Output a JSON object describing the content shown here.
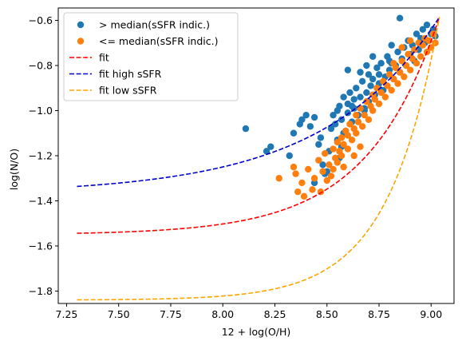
{
  "chart_data": {
    "type": "scatter",
    "title": "",
    "xlabel": "12 + log(O/H)",
    "ylabel": "log(N/O)",
    "xlim": [
      7.21,
      9.11
    ],
    "ylim": [
      -1.855,
      -0.545
    ],
    "xticks": [
      7.25,
      7.5,
      7.75,
      8.0,
      8.25,
      8.5,
      8.75,
      9.0
    ],
    "xtick_labels": [
      "7.25",
      "7.50",
      "7.75",
      "8.00",
      "8.25",
      "8.50",
      "8.75",
      "9.00"
    ],
    "yticks": [
      -1.8,
      -1.6,
      -1.4,
      -1.2,
      -1.0,
      -0.8,
      -0.6
    ],
    "ytick_labels": [
      "−1.8",
      "−1.6",
      "−1.4",
      "−1.2",
      "−1.0",
      "−0.8",
      "−0.6"
    ],
    "legend_position": "upper-left",
    "series": [
      {
        "name": "> median(sSFR indic.)",
        "kind": "scatter",
        "color": "#1f77b4",
        "points": [
          [
            8.11,
            -1.08
          ],
          [
            8.21,
            -1.18
          ],
          [
            8.23,
            -1.16
          ],
          [
            8.32,
            -1.2
          ],
          [
            8.34,
            -1.1
          ],
          [
            8.37,
            -1.06
          ],
          [
            8.38,
            -1.04
          ],
          [
            8.4,
            -1.02
          ],
          [
            8.42,
            -1.07
          ],
          [
            8.44,
            -1.03
          ],
          [
            8.46,
            -1.15
          ],
          [
            8.47,
            -1.12
          ],
          [
            8.48,
            -1.24
          ],
          [
            8.49,
            -1.28
          ],
          [
            8.51,
            -1.18
          ],
          [
            8.52,
            -1.08
          ],
          [
            8.53,
            -1.02
          ],
          [
            8.54,
            -1.06
          ],
          [
            8.55,
            -1.13
          ],
          [
            8.55,
            -1.0
          ],
          [
            8.56,
            -0.98
          ],
          [
            8.57,
            -1.16
          ],
          [
            8.57,
            -1.04
          ],
          [
            8.58,
            -0.94
          ],
          [
            8.59,
            -1.09
          ],
          [
            8.6,
            -1.01
          ],
          [
            8.6,
            -0.97
          ],
          [
            8.61,
            -0.92
          ],
          [
            8.62,
            -1.05
          ],
          [
            8.63,
            -0.99
          ],
          [
            8.63,
            -0.95
          ],
          [
            8.64,
            -0.9
          ],
          [
            8.65,
            -1.02
          ],
          [
            8.66,
            -0.94
          ],
          [
            8.67,
            -0.87
          ],
          [
            8.68,
            -0.99
          ],
          [
            8.69,
            -0.92
          ],
          [
            8.7,
            -0.84
          ],
          [
            8.7,
            -0.96
          ],
          [
            8.71,
            -0.89
          ],
          [
            8.72,
            -0.86
          ],
          [
            8.73,
            -0.93
          ],
          [
            8.74,
            -0.81
          ],
          [
            8.75,
            -0.88
          ],
          [
            8.75,
            -0.84
          ],
          [
            8.76,
            -0.79
          ],
          [
            8.77,
            -0.91
          ],
          [
            8.78,
            -0.85
          ],
          [
            8.79,
            -0.76
          ],
          [
            8.8,
            -0.82
          ],
          [
            8.8,
            -0.78
          ],
          [
            8.81,
            -0.71
          ],
          [
            8.82,
            -0.86
          ],
          [
            8.83,
            -0.8
          ],
          [
            8.84,
            -0.74
          ],
          [
            8.85,
            -0.83
          ],
          [
            8.86,
            -0.77
          ],
          [
            8.87,
            -0.72
          ],
          [
            8.88,
            -0.8
          ],
          [
            8.89,
            -0.69
          ],
          [
            8.9,
            -0.75
          ],
          [
            8.91,
            -0.71
          ],
          [
            8.92,
            -0.78
          ],
          [
            8.93,
            -0.66
          ],
          [
            8.94,
            -0.73
          ],
          [
            8.95,
            -0.68
          ],
          [
            8.96,
            -0.64
          ],
          [
            8.97,
            -0.7
          ],
          [
            8.98,
            -0.62
          ],
          [
            9.0,
            -0.66
          ],
          [
            9.01,
            -0.64
          ],
          [
            9.02,
            -0.67
          ],
          [
            8.72,
            -0.76
          ],
          [
            8.66,
            -0.83
          ],
          [
            8.6,
            -0.82
          ],
          [
            8.69,
            -0.8
          ],
          [
            8.85,
            -0.59
          ],
          [
            8.81,
            -0.79
          ],
          [
            8.58,
            -1.1
          ],
          [
            8.62,
            -0.98
          ],
          [
            8.44,
            -1.32
          ],
          [
            8.5,
            -1.27
          ],
          [
            8.56,
            -1.21
          ],
          [
            8.68,
            -1.0
          ]
        ]
      },
      {
        "name": "<= median(sSFR indic.)",
        "kind": "scatter",
        "color": "#ff7f0e",
        "points": [
          [
            8.27,
            -1.3
          ],
          [
            8.34,
            -1.25
          ],
          [
            8.35,
            -1.28
          ],
          [
            8.36,
            -1.36
          ],
          [
            8.38,
            -1.32
          ],
          [
            8.39,
            -1.38
          ],
          [
            8.41,
            -1.26
          ],
          [
            8.43,
            -1.35
          ],
          [
            8.44,
            -1.3
          ],
          [
            8.46,
            -1.22
          ],
          [
            8.47,
            -1.36
          ],
          [
            8.48,
            -1.27
          ],
          [
            8.49,
            -1.19
          ],
          [
            8.5,
            -1.31
          ],
          [
            8.51,
            -1.24
          ],
          [
            8.52,
            -1.29
          ],
          [
            8.53,
            -1.17
          ],
          [
            8.53,
            -1.26
          ],
          [
            8.54,
            -1.21
          ],
          [
            8.55,
            -1.14
          ],
          [
            8.55,
            -1.23
          ],
          [
            8.56,
            -1.18
          ],
          [
            8.57,
            -1.12
          ],
          [
            8.57,
            -1.2
          ],
          [
            8.58,
            -1.15
          ],
          [
            8.59,
            -1.09
          ],
          [
            8.6,
            -1.17
          ],
          [
            8.6,
            -1.11
          ],
          [
            8.61,
            -1.06
          ],
          [
            8.62,
            -1.13
          ],
          [
            8.63,
            -1.08
          ],
          [
            8.64,
            -1.02
          ],
          [
            8.64,
            -1.1
          ],
          [
            8.65,
            -1.05
          ],
          [
            8.66,
            -0.99
          ],
          [
            8.67,
            -1.07
          ],
          [
            8.68,
            -1.02
          ],
          [
            8.69,
            -0.96
          ],
          [
            8.7,
            -1.04
          ],
          [
            8.71,
            -0.98
          ],
          [
            8.72,
            -0.93
          ],
          [
            8.72,
            -1.0
          ],
          [
            8.73,
            -0.95
          ],
          [
            8.74,
            -0.9
          ],
          [
            8.75,
            -0.97
          ],
          [
            8.76,
            -0.92
          ],
          [
            8.77,
            -0.87
          ],
          [
            8.78,
            -0.94
          ],
          [
            8.79,
            -0.89
          ],
          [
            8.8,
            -0.84
          ],
          [
            8.81,
            -0.91
          ],
          [
            8.82,
            -0.86
          ],
          [
            8.83,
            -0.81
          ],
          [
            8.84,
            -0.88
          ],
          [
            8.85,
            -0.83
          ],
          [
            8.86,
            -0.78
          ],
          [
            8.87,
            -0.85
          ],
          [
            8.88,
            -0.8
          ],
          [
            8.89,
            -0.75
          ],
          [
            8.9,
            -0.82
          ],
          [
            8.91,
            -0.77
          ],
          [
            8.92,
            -0.73
          ],
          [
            8.93,
            -0.79
          ],
          [
            8.94,
            -0.7
          ],
          [
            8.95,
            -0.76
          ],
          [
            8.96,
            -0.71
          ],
          [
            8.97,
            -0.68
          ],
          [
            8.98,
            -0.74
          ],
          [
            8.99,
            -0.69
          ],
          [
            9.0,
            -0.72
          ],
          [
            9.01,
            -0.66
          ],
          [
            9.02,
            -0.7
          ],
          [
            8.86,
            -0.72
          ],
          [
            8.9,
            -0.69
          ],
          [
            8.82,
            -0.79
          ],
          [
            8.66,
            -1.16
          ],
          [
            8.58,
            -1.25
          ],
          [
            8.63,
            -1.2
          ]
        ]
      }
    ],
    "fits": [
      {
        "name": "fit",
        "color": "#ff0000",
        "a": -1.55,
        "b": 6.95,
        "c": 1.6,
        "x_range": [
          7.3,
          9.04
        ]
      },
      {
        "name": "fit high sSFR",
        "color": "#0000cd",
        "a": -1.37,
        "b": 4.33,
        "c": 1.6,
        "x_range": [
          7.3,
          9.04
        ]
      },
      {
        "name": "fit low sSFR",
        "color": "#ffa500",
        "a": -1.84,
        "b": 9.8,
        "c": 1.6,
        "x_range": [
          7.3,
          9.04
        ]
      }
    ]
  },
  "legend": {
    "items": [
      {
        "label": "> median(sSFR indic.)",
        "kind": "marker",
        "color": "#1f77b4"
      },
      {
        "label": "<= median(sSFR indic.)",
        "kind": "marker",
        "color": "#ff7f0e"
      },
      {
        "label": "fit",
        "kind": "dashed",
        "color": "#ff0000"
      },
      {
        "label": "fit high sSFR",
        "kind": "dashed",
        "color": "#0000cd"
      },
      {
        "label": "fit low sSFR",
        "kind": "dashed",
        "color": "#ffa500"
      }
    ]
  }
}
